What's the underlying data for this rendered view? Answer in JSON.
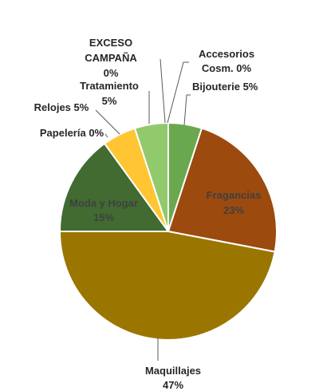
{
  "chart_data": {
    "type": "pie",
    "title": "",
    "slices": [
      {
        "label": "Bijouterie",
        "value": 5,
        "value_label": "5%",
        "color": "#6aa84f"
      },
      {
        "label": "Fragancias",
        "value": 23,
        "value_label": "23%",
        "color": "#9c4a0e"
      },
      {
        "label": "Maquillajes",
        "value": 47,
        "value_label": "47%",
        "color": "#9a7600"
      },
      {
        "label": "Moda y Hogar",
        "value": 15,
        "value_label": "15%",
        "color": "#416b31"
      },
      {
        "label": "Papelería",
        "value": 0,
        "value_label": "0%",
        "color": "#c9a227"
      },
      {
        "label": "Relojes",
        "value": 5,
        "value_label": "5%",
        "color": "#ffc533"
      },
      {
        "label": "Tratamiento",
        "value": 5,
        "value_label": "5%",
        "color": "#92c96d"
      },
      {
        "label": "EXCESO CAMPAÑA",
        "value": 0,
        "value_label": "0%",
        "color": "#d9d9d9"
      },
      {
        "label": "Accesorios Cosm.",
        "value": 0,
        "value_label": "0%",
        "color": "#a9d18e"
      }
    ],
    "labels_text": {
      "bijouterie": "Bijouterie 5%",
      "fragancias_name": "Fragancias",
      "fragancias_pct": "23%",
      "maquillajes_name": "Maquillajes",
      "maquillajes_pct": "47%",
      "moda_name": "Moda y Hogar",
      "moda_pct": "15%",
      "papeleria": "Papelería 0%",
      "relojes": "Relojes 5%",
      "tratamiento_name": "Tratamiento",
      "tratamiento_pct": "5%",
      "exceso_line1": "EXCESO",
      "exceso_line2": "CAMPAÑA",
      "exceso_pct": "0%",
      "accesorios_line1": "Accesorios",
      "accesorios_line2": "Cosm. 0%"
    }
  }
}
